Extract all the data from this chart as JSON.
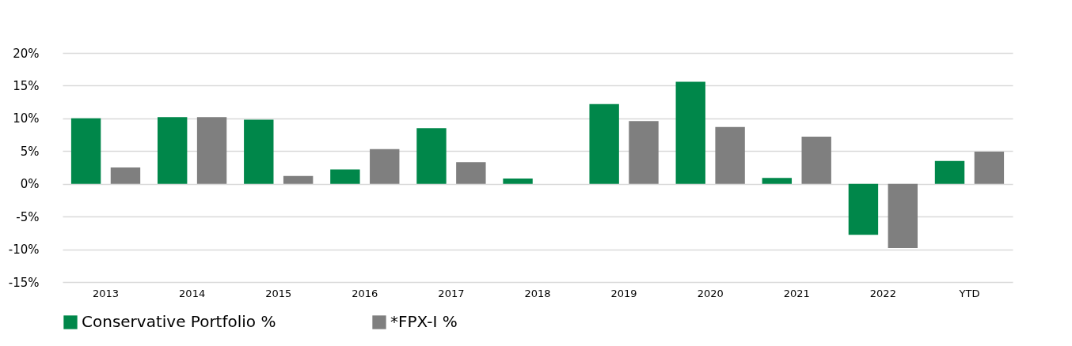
{
  "chart_data": {
    "type": "bar",
    "categories": [
      "2013",
      "2014",
      "2015",
      "2016",
      "2017",
      "2018",
      "2019",
      "2020",
      "2021",
      "2022",
      "YTD"
    ],
    "series": [
      {
        "name": "Conservative Portfolio %",
        "color": "#00874a",
        "values": [
          10.0,
          10.2,
          9.8,
          2.2,
          8.5,
          0.8,
          12.2,
          15.6,
          0.9,
          -7.8,
          3.5
        ]
      },
      {
        "name": "*FPX-I %",
        "color": "#7f7f7f",
        "values": [
          2.5,
          10.2,
          1.2,
          5.3,
          3.3,
          0,
          9.6,
          8.7,
          7.2,
          -9.8,
          4.9
        ]
      }
    ],
    "ylim": [
      -15,
      20
    ],
    "yticks": [
      {
        "value": -15,
        "label": "-15%"
      },
      {
        "value": -10,
        "label": "-10%"
      },
      {
        "value": -5,
        "label": "-5%"
      },
      {
        "value": 0,
        "label": "0%"
      },
      {
        "value": 5,
        "label": "5%"
      },
      {
        "value": 10,
        "label": "10%"
      },
      {
        "value": 15,
        "label": "15%"
      },
      {
        "value": 20,
        "label": "20%"
      }
    ],
    "grid": "y",
    "legend": "bottom"
  }
}
